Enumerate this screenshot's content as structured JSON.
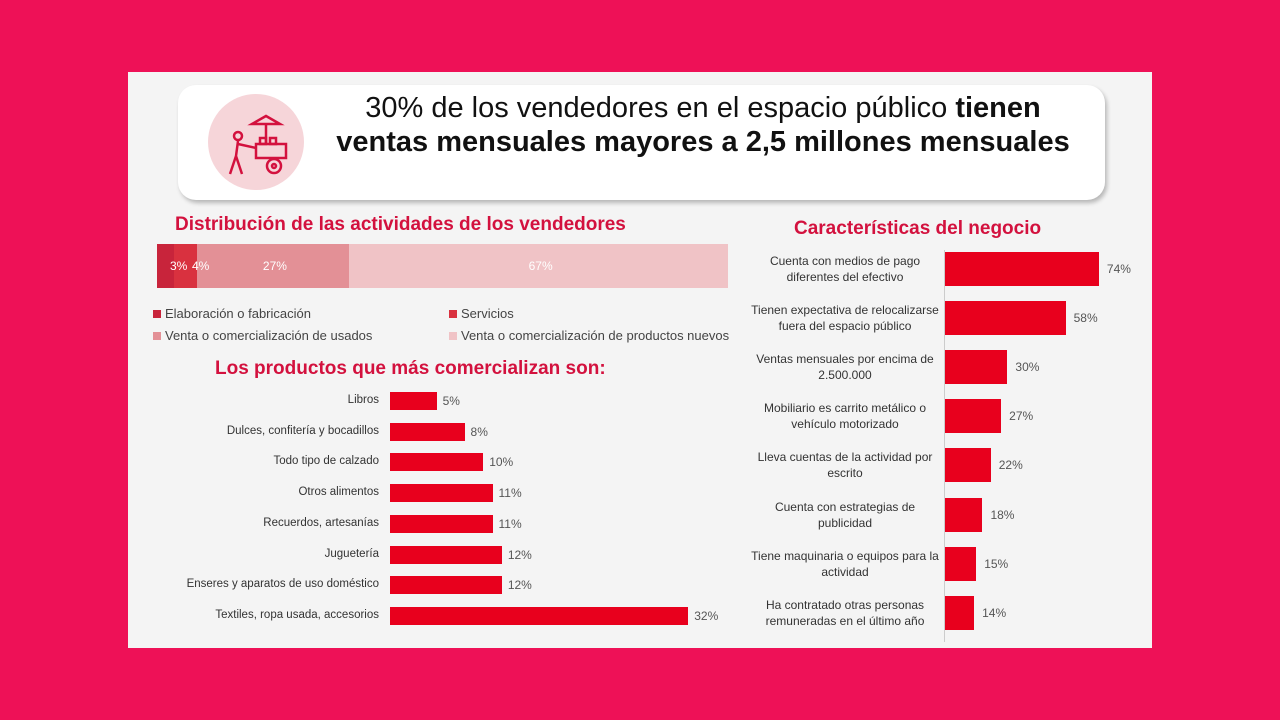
{
  "header": {
    "icon": "street-vendor-cart-icon",
    "headline_regular": "30% de los vendedores en el espacio público ",
    "headline_bold": "tienen ventas mensuales mayores a 2,5 millones mensuales"
  },
  "colors": {
    "background": "#ee1157",
    "accent": "#e8001d",
    "title": "#d3113e"
  },
  "chart_data": [
    {
      "type": "bar",
      "stacked": true,
      "orientation": "horizontal",
      "title": "Distribución de las actividades de los vendedores",
      "series": [
        {
          "name": "Elaboración o fabricación",
          "values": [
            3
          ],
          "label": "3%",
          "color": "#c8243b"
        },
        {
          "name": "Servicios",
          "values": [
            4
          ],
          "label": "4%",
          "color": "#d9313f"
        },
        {
          "name": "Venta o comercialización de usados",
          "values": [
            27
          ],
          "label": "27%",
          "color": "#e39096"
        },
        {
          "name": "Venta o comercialización de productos nuevos",
          "values": [
            67
          ],
          "label": "67%",
          "color": "#f0c3c6"
        }
      ],
      "legend": "bottom"
    },
    {
      "type": "bar",
      "orientation": "horizontal",
      "title": "Los productos que más comercializan son:",
      "categories": [
        "Libros",
        "Dulces, confitería y bocadillos",
        "Todo tipo de calzado",
        "Otros alimentos",
        "Recuerdos, artesanías",
        "Juguetería",
        "Enseres y aparatos de uso doméstico",
        "Textiles, ropa usada, accesorios"
      ],
      "values": [
        5,
        8,
        10,
        11,
        11,
        12,
        12,
        32
      ],
      "labels": [
        "5%",
        "8%",
        "10%",
        "11%",
        "11%",
        "12%",
        "12%",
        "32%"
      ]
    },
    {
      "type": "bar",
      "orientation": "horizontal",
      "title": "Características del negocio",
      "categories": [
        "Cuenta con medios de pago diferentes del efectivo",
        "Tienen expectativa de relocalizarse fuera del espacio público",
        "Ventas mensuales por encima de 2.500.000",
        "Mobiliario es carrito metálico o vehículo motorizado",
        "Lleva cuentas de la actividad por escrito",
        "Cuenta con estrategias de publicidad",
        "Tiene maquinaria o equipos para la actividad",
        "Ha contratado otras personas remuneradas en el último año"
      ],
      "values": [
        74,
        58,
        30,
        27,
        22,
        18,
        15,
        14
      ],
      "labels": [
        "74%",
        "58%",
        "30%",
        "27%",
        "22%",
        "18%",
        "15%",
        "14%"
      ]
    }
  ]
}
